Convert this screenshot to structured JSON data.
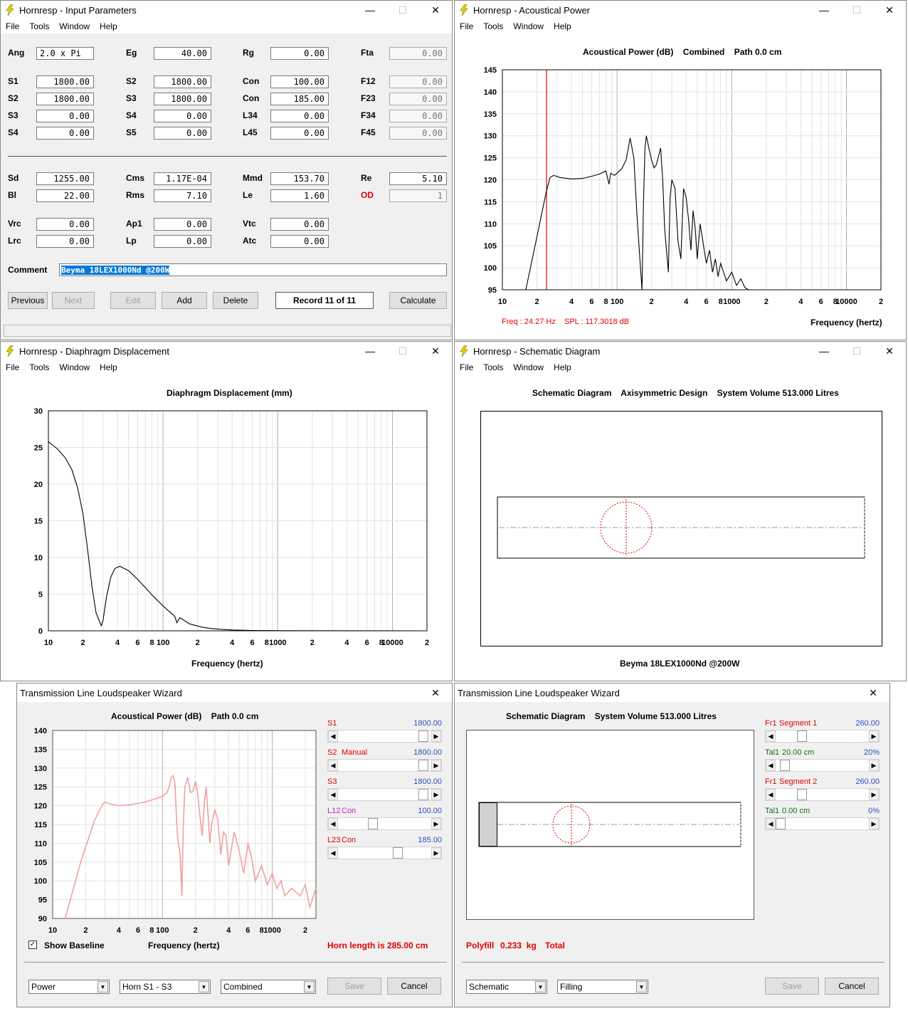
{
  "colors": {
    "accent_red": "#e00000",
    "blue": "#2a4fc0",
    "green": "#107010",
    "magenta": "#c020c0"
  },
  "menus": [
    "File",
    "Tools",
    "Window",
    "Help"
  ],
  "input": {
    "title": "Hornresp - Input Parameters",
    "rows1": [
      {
        "l1": "Ang",
        "v1": "2.0 x Pi",
        "l2": "Eg",
        "v2": "40.00",
        "l3": "Rg",
        "v3": "0.00",
        "l4": "Fta",
        "v4": "0.00"
      },
      {
        "l1": "S1",
        "v1": "1800.00",
        "l2": "S2",
        "v2": "1800.00",
        "l3": "Con",
        "v3": "100.00",
        "l4": "F12",
        "v4": "0.00"
      },
      {
        "l1": "S2",
        "v1": "1800.00",
        "l2": "S3",
        "v2": "1800.00",
        "l3": "Con",
        "v3": "185.00",
        "l4": "F23",
        "v4": "0.00"
      },
      {
        "l1": "S3",
        "v1": "0.00",
        "l2": "S4",
        "v2": "0.00",
        "l3": "L34",
        "v3": "0.00",
        "l4": "F34",
        "v4": "0.00"
      },
      {
        "l1": "S4",
        "v1": "0.00",
        "l2": "S5",
        "v2": "0.00",
        "l3": "L45",
        "v3": "0.00",
        "l4": "F45",
        "v4": "0.00"
      }
    ],
    "rows2": [
      {
        "l1": "Sd",
        "v1": "1255.00",
        "l2": "Cms",
        "v2": "1.17E-04",
        "l3": "Mmd",
        "v3": "153.70",
        "l4": "Re",
        "v4": "5.10"
      },
      {
        "l1": "Bl",
        "v1": "22.00",
        "l2": "Rms",
        "v2": "7.10",
        "l3": "Le",
        "v3": "1.60",
        "l4": "OD",
        "v4": "1"
      }
    ],
    "rows3": [
      {
        "l1": "Vrc",
        "v1": "0.00",
        "l2": "Ap1",
        "v2": "0.00",
        "l3": "Vtc",
        "v3": "0.00"
      },
      {
        "l1": "Lrc",
        "v1": "0.00",
        "l2": "Lp",
        "v2": "0.00",
        "l3": "Atc",
        "v3": "0.00"
      }
    ],
    "comment_label": "Comment",
    "comment": "Beyma 18LEX1000Nd @200W",
    "buttons": {
      "previous": "Previous",
      "next": "Next",
      "edit": "Edit",
      "add": "Add",
      "delete": "Delete",
      "record": "Record 11 of 11",
      "calculate": "Calculate"
    }
  },
  "power": {
    "title": "Hornresp - Acoustical Power",
    "plot_title": "Acoustical Power (dB)    Combined    Path 0.0 cm",
    "readout_freq": "Freq : 24.27 Hz",
    "readout_spl": "SPL : 117.3018 dB",
    "xlabel": "Frequency (hertz)"
  },
  "disp": {
    "title": "Hornresp - Diaphragm Displacement",
    "plot_title": "Diaphragm Displacement (mm)",
    "xlabel": "Frequency (hertz)"
  },
  "schem": {
    "title": "Hornresp - Schematic Diagram",
    "plot_title": "Schematic Diagram    Axisymmetric Design    System Volume 513.000 Litres",
    "footer": "Beyma 18LEX1000Nd @200W"
  },
  "wiz1": {
    "title": "Transmission Line Loudspeaker Wizard",
    "plot_title": "Acoustical Power (dB)    Path 0.0 cm",
    "xlabel": "Frequency (hertz)",
    "show_baseline": "Show Baseline",
    "horn_length": "Horn length is 285.00 cm",
    "sliders": [
      {
        "name": "S1",
        "sub": "",
        "value": "1800.00",
        "pos": 0.95
      },
      {
        "name": "S2",
        "sub": "Manual",
        "value": "1800.00",
        "pos": 0.95
      },
      {
        "name": "S3",
        "sub": "",
        "value": "1800.00",
        "pos": 0.95
      },
      {
        "name": "L12",
        "sub": "Con",
        "value": "100.00",
        "pos": 0.35
      },
      {
        "name": "L23",
        "sub": "Con",
        "value": "185.00",
        "pos": 0.65
      }
    ],
    "combos": [
      "Power",
      "Horn S1 - S3",
      "Combined"
    ],
    "save": "Save",
    "cancel": "Cancel"
  },
  "wiz2": {
    "title": "Transmission Line Loudspeaker Wizard",
    "plot_title": "Schematic Diagram    System Volume 513.000 Litres",
    "footer_polyfill": "Polyfill",
    "footer_kg": "0.233  kg",
    "footer_total": "Total",
    "sliders": [
      {
        "name": "Fr1",
        "sub": "Segment 1",
        "value": "260.00",
        "pos": 0.25
      },
      {
        "name": "Tal1",
        "sub": "20.00 cm",
        "value": "20%",
        "pos": 0.05
      },
      {
        "name": "Fr1",
        "sub": "Segment 2",
        "value": "260.00",
        "pos": 0.25
      },
      {
        "name": "Tal1",
        "sub": "0.00 cm",
        "value": "0%",
        "pos": 0.0
      }
    ],
    "combos": [
      "Schematic",
      "Filling"
    ],
    "save": "Save",
    "cancel": "Cancel"
  },
  "chart_data": [
    {
      "type": "line",
      "title": "Acoustical Power (dB)    Combined    Path 0.0 cm",
      "xlabel": "Frequency (hertz)",
      "ylabel": "",
      "xscale": "log",
      "xlim": [
        10,
        20000
      ],
      "ylim": [
        95,
        145
      ],
      "x_tick_labels": [
        "10",
        "2",
        "4",
        "6",
        "8",
        "100",
        "2",
        "4",
        "6",
        "8",
        "1000",
        "2",
        "4",
        "6",
        "8",
        "10000",
        "2"
      ],
      "y_tick_labels": [
        "145",
        "140",
        "135",
        "130",
        "125",
        "120",
        "115",
        "110",
        "105",
        "100",
        "95"
      ],
      "grid": true,
      "marker_x": 24.27,
      "series": [
        {
          "x": [
            16,
            20,
            24,
            26,
            28,
            32,
            40,
            50,
            60,
            70,
            80,
            85,
            88,
            95,
            100,
            110,
            120,
            130,
            140,
            150,
            158,
            165,
            170,
            175,
            180,
            190,
            200,
            210,
            220,
            240,
            250,
            260,
            280,
            290,
            300,
            320,
            340,
            360,
            380,
            400,
            420,
            440,
            460,
            480,
            500,
            530,
            560,
            600,
            640,
            680,
            720,
            760,
            800,
            900,
            1000,
            1100,
            1200,
            1300,
            1400
          ],
          "y": [
            95,
            107,
            117,
            120.5,
            121,
            120.5,
            120.2,
            120.3,
            120.8,
            121.3,
            122,
            119,
            121.5,
            121,
            121.5,
            122.5,
            124.5,
            129.5,
            125,
            111,
            102,
            95,
            115,
            127,
            130,
            127,
            124.5,
            122.7,
            123.4,
            127.2,
            120,
            109,
            99,
            116,
            120,
            118,
            106,
            102,
            118,
            116,
            111,
            104,
            113,
            109,
            102,
            110,
            106,
            101,
            104,
            99,
            102,
            98,
            101,
            97,
            99,
            96,
            97.5,
            95.5,
            95
          ]
        }
      ]
    },
    {
      "type": "line",
      "title": "Diaphragm Displacement (mm)",
      "xlabel": "Frequency (hertz)",
      "ylabel": "",
      "xscale": "log",
      "xlim": [
        10,
        20000
      ],
      "ylim": [
        0,
        30
      ],
      "x_tick_labels": [
        "10",
        "2",
        "4",
        "6",
        "8",
        "100",
        "2",
        "4",
        "6",
        "8",
        "1000",
        "2",
        "4",
        "6",
        "8",
        "10000",
        "2"
      ],
      "y_tick_labels": [
        "30",
        "25",
        "20",
        "15",
        "10",
        "5",
        "0"
      ],
      "grid": true,
      "series": [
        {
          "x": [
            10,
            12,
            14,
            16,
            18,
            20,
            22,
            24,
            26,
            28,
            29,
            30,
            32,
            35,
            38,
            42,
            50,
            60,
            70,
            80,
            90,
            100,
            110,
            120,
            127,
            132,
            140,
            150,
            160,
            170,
            190,
            220,
            260,
            320,
            400,
            600,
            1000,
            5000,
            20000
          ],
          "y": [
            25.8,
            24.8,
            23.6,
            22,
            19.5,
            16,
            11,
            6,
            2.5,
            1.2,
            0.7,
            1.5,
            4.5,
            7.3,
            8.5,
            8.8,
            8.2,
            7,
            5.9,
            4.9,
            4.1,
            3.4,
            2.8,
            2.3,
            1.9,
            1.1,
            1.8,
            1.5,
            1.2,
            0.95,
            0.75,
            0.5,
            0.32,
            0.2,
            0.12,
            0.05,
            0.02,
            0.01,
            0
          ]
        }
      ]
    },
    {
      "type": "line",
      "title": "Acoustical Power (dB)    Path 0.0 cm",
      "xlabel": "Frequency (hertz)",
      "ylabel": "",
      "xscale": "log",
      "xlim": [
        10,
        2500
      ],
      "ylim": [
        90,
        140
      ],
      "x_tick_labels": [
        "10",
        "2",
        "4",
        "6",
        "8",
        "100",
        "2",
        "4",
        "6",
        "8",
        "1000",
        "2"
      ],
      "y_tick_labels": [
        "140",
        "135",
        "130",
        "125",
        "120",
        "115",
        "110",
        "105",
        "100",
        "95",
        "90"
      ],
      "grid": true,
      "series": [
        {
          "x": [
            13,
            18,
            24,
            28,
            30,
            33,
            40,
            50,
            60,
            70,
            80,
            90,
            100,
            110,
            115,
            120,
            125,
            130,
            135,
            138,
            145,
            150,
            155,
            160,
            170,
            180,
            190,
            200,
            210,
            220,
            230,
            240,
            250,
            260,
            270,
            280,
            300,
            320,
            340,
            360,
            380,
            400,
            450,
            500,
            550,
            600,
            650,
            700,
            800,
            900,
            1000,
            1100,
            1200,
            1300,
            1500,
            1800,
            2000,
            2200,
            2500
          ],
          "y": [
            90,
            105,
            116,
            120,
            121,
            120.5,
            120,
            120.2,
            120.6,
            121,
            121.5,
            122,
            122.5,
            123.5,
            125,
            127.5,
            128,
            126,
            115,
            111,
            107,
            96,
            115,
            125,
            127.5,
            123.5,
            123.8,
            126.5,
            123,
            117,
            112,
            120.5,
            125,
            118,
            110,
            115,
            119,
            116,
            107,
            113,
            112,
            104,
            113,
            108,
            102,
            110,
            106,
            100,
            104,
            99,
            102,
            98,
            100,
            96,
            98,
            96,
            99,
            93,
            98
          ]
        }
      ]
    }
  ]
}
